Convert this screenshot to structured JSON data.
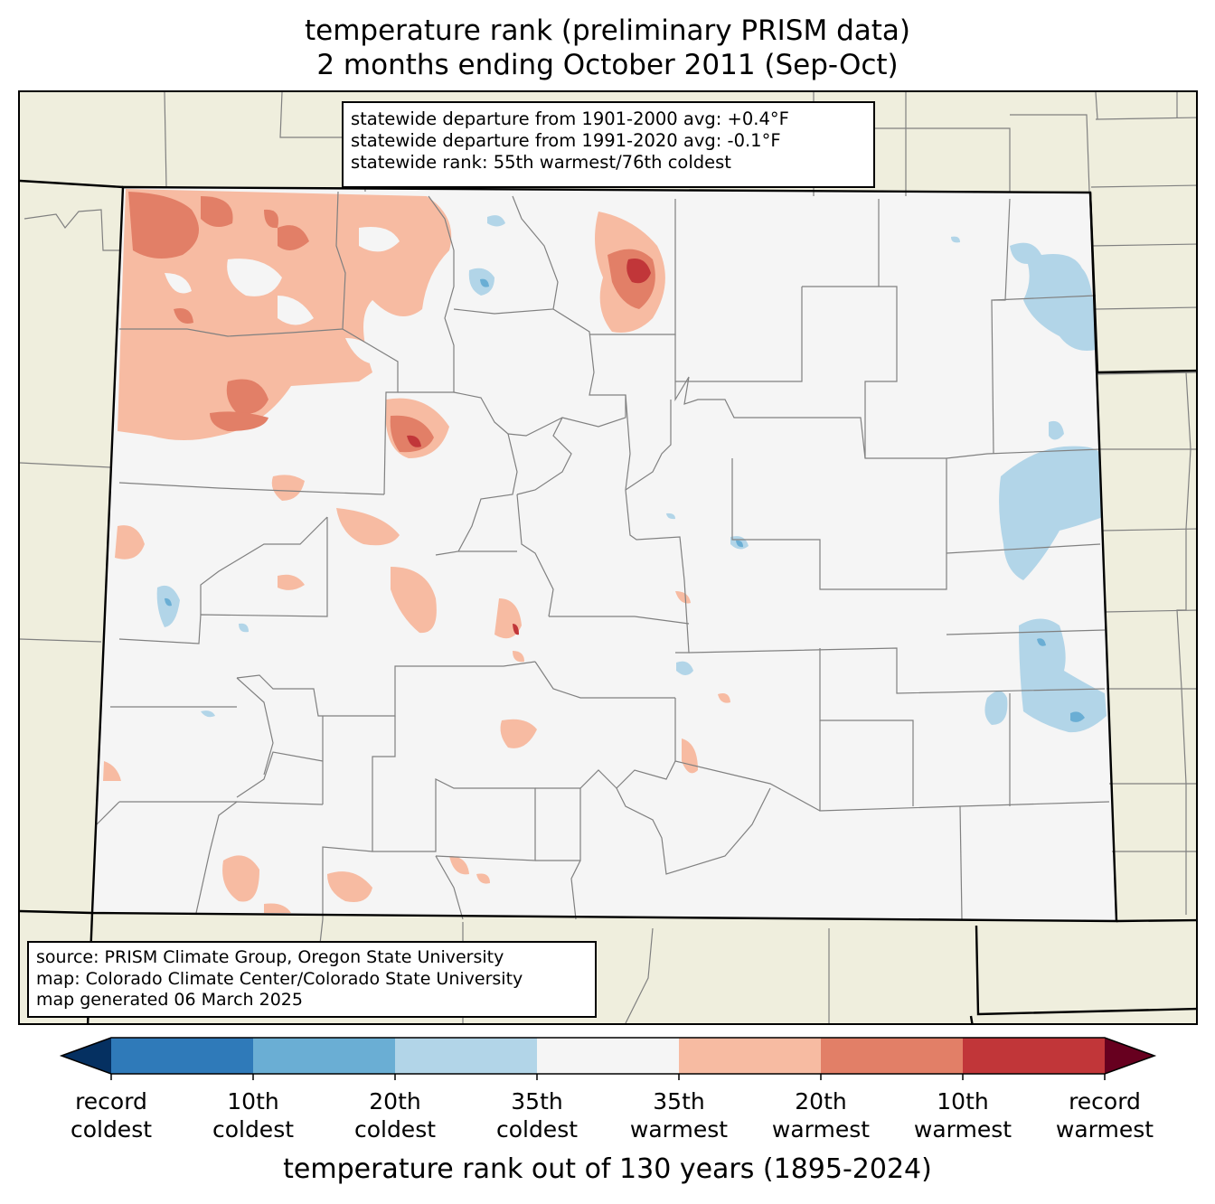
{
  "title": {
    "line1": "temperature rank (preliminary PRISM data)",
    "line2": "2 months ending October 2011 (Sep-Oct)"
  },
  "stats": {
    "line1": "statewide departure from 1901-2000 avg: +0.4°F",
    "line2": "statewide departure from 1991-2020 avg: -0.1°F",
    "line3": "statewide rank: 55th warmest/76th coldest"
  },
  "credits": {
    "line1": "source: PRISM Climate Group, Oregon State University",
    "line2": "map: Colorado Climate Center/Colorado State University",
    "line3": "map generated 06 March 2025"
  },
  "colorbar": {
    "label": "temperature rank out of 130 years (1895-2024)",
    "bins": [
      {
        "color": "#053061",
        "range": "below record coldest"
      },
      {
        "color": "#2f7ab9",
        "range": "record coldest to 10th coldest"
      },
      {
        "color": "#6aaed4",
        "range": "10th coldest to 20th coldest"
      },
      {
        "color": "#b2d5e8",
        "range": "20th coldest to 35th coldest"
      },
      {
        "color": "#f5f5f5",
        "range": "35th coldest to 35th warmest"
      },
      {
        "color": "#f7bba2",
        "range": "35th warmest to 20th warmest"
      },
      {
        "color": "#e27f67",
        "range": "20th warmest to 10th warmest"
      },
      {
        "color": "#c13639",
        "range": "10th warmest to record warmest"
      },
      {
        "color": "#67001f",
        "range": "above record warmest"
      }
    ],
    "ticks": [
      {
        "line1": "record",
        "line2": "coldest"
      },
      {
        "line1": "10th",
        "line2": "coldest"
      },
      {
        "line1": "20th",
        "line2": "coldest"
      },
      {
        "line1": "35th",
        "line2": "coldest"
      },
      {
        "line1": "35th",
        "line2": "warmest"
      },
      {
        "line1": "20th",
        "line2": "warmest"
      },
      {
        "line1": "10th",
        "line2": "warmest"
      },
      {
        "line1": "record",
        "line2": "warmest"
      }
    ]
  },
  "map_colors": {
    "background_land": "#efeedd",
    "colorado_fill": "#f5f5f5",
    "county_lines": "#808080",
    "state_lines": "#000000"
  }
}
